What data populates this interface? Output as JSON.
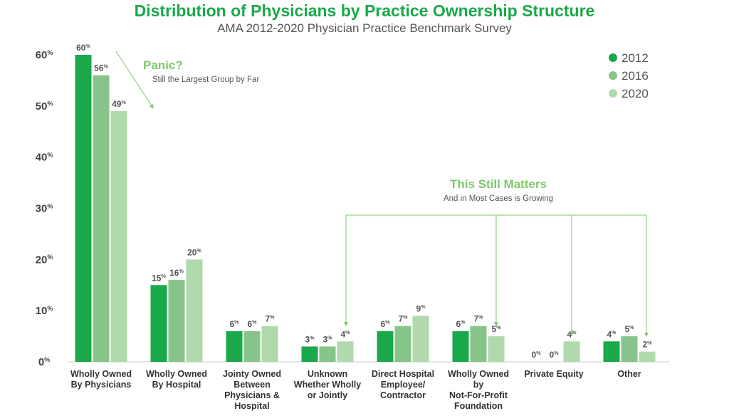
{
  "chart_data": {
    "type": "bar",
    "title": "Distribution of Physicians by Practice Ownership Structure",
    "subtitle": "AMA 2012-2020 Physician Practice Benchmark  Survey",
    "categories": [
      [
        "Wholly Owned",
        "By Physicians"
      ],
      [
        "Wholly Owned",
        "By Hospital"
      ],
      [
        "Jointy Owned",
        "Between",
        "Physicians &",
        "Hospital"
      ],
      [
        "Unknown",
        "Whether Wholly",
        "or Jointly"
      ],
      [
        "Direct Hospital",
        "Employee/",
        "Contractor"
      ],
      [
        "Wholly Owned",
        "by",
        "Not-For-Profit",
        "Foundation"
      ],
      [
        "Private Equity"
      ],
      [
        "Other"
      ]
    ],
    "series": [
      {
        "name": "2012",
        "color": "#1aa84a",
        "values": [
          60,
          15,
          6,
          3,
          6,
          6,
          0,
          4
        ]
      },
      {
        "name": "2016",
        "color": "#87c48a",
        "values": [
          56,
          16,
          6,
          3,
          7,
          7,
          0,
          5
        ]
      },
      {
        "name": "2020",
        "color": "#b0d9ad",
        "values": [
          49,
          20,
          7,
          4,
          9,
          5,
          4,
          2
        ]
      }
    ],
    "ylim": [
      0,
      60
    ],
    "yticks": [
      0,
      10,
      20,
      30,
      40,
      50,
      60
    ],
    "grid": false,
    "legend": "top-right",
    "annotations": [
      {
        "title": "Panic?",
        "text": "Still the Largest Group by Far"
      },
      {
        "title": "This Still Matters",
        "text": "And in Most Cases is Growing"
      }
    ]
  }
}
